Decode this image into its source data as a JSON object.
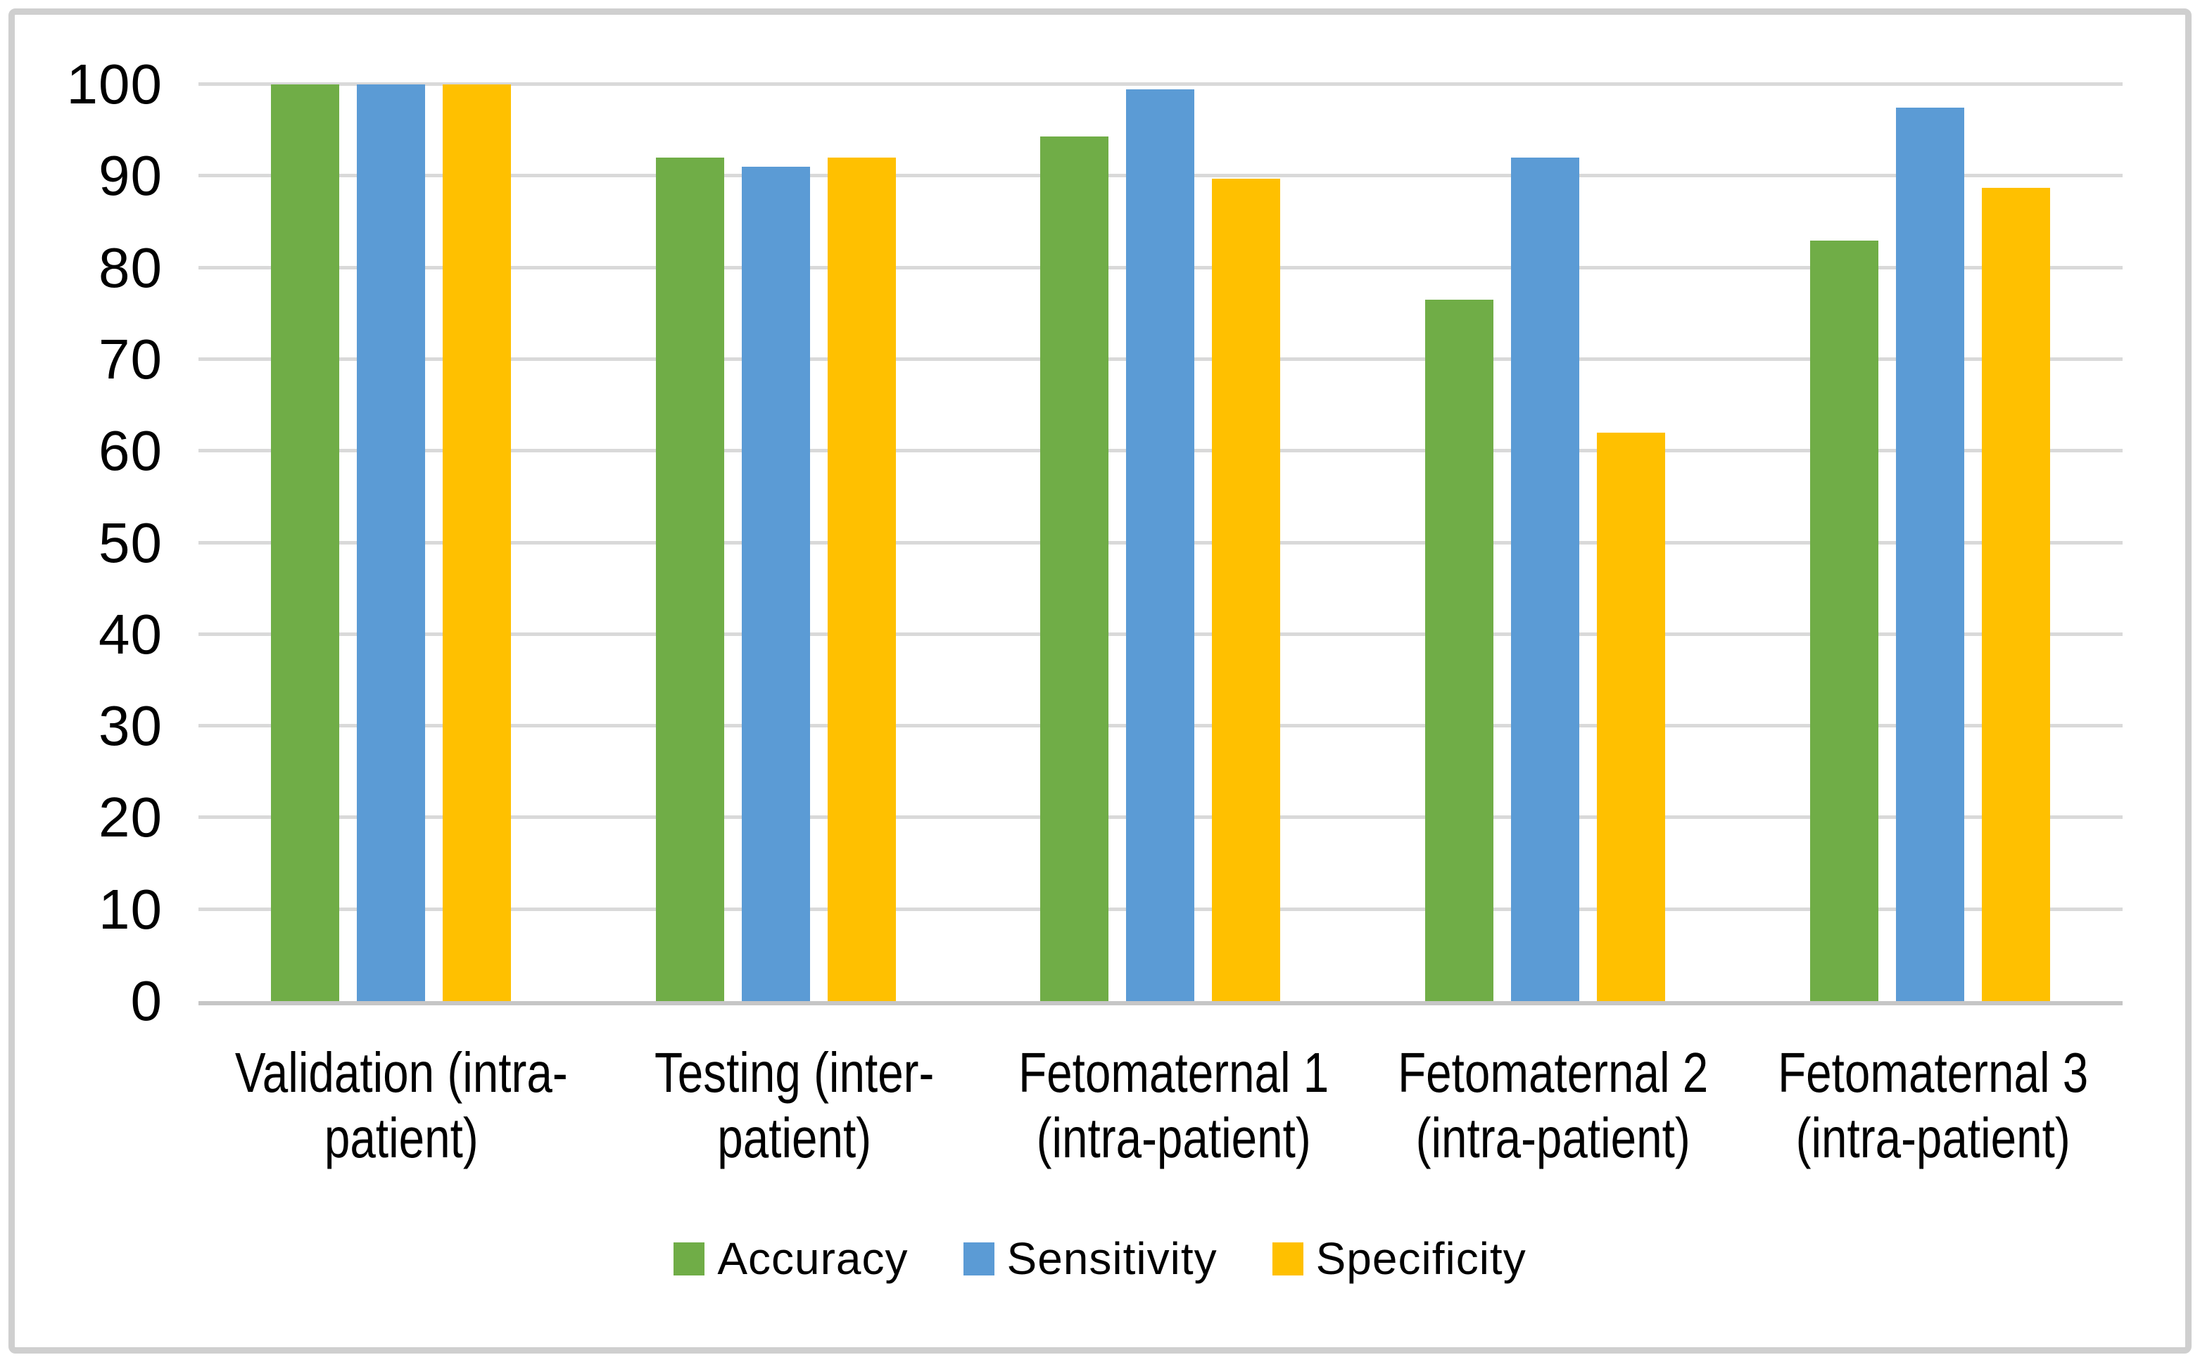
{
  "chart_data": {
    "type": "bar",
    "title": "",
    "xlabel": "",
    "ylabel": "",
    "categories": [
      [
        "Validation (intra-",
        "patient)"
      ],
      [
        "Testing (inter-",
        "patient)"
      ],
      [
        "Fetomaternal 1",
        "(intra-patient)"
      ],
      [
        "Fetomaternal 2",
        "(intra-patient)"
      ],
      [
        "Fetomaternal 3",
        "(intra-patient)"
      ]
    ],
    "series": [
      {
        "name": "Accuracy",
        "color": "#70AD47",
        "values": [
          100,
          92,
          94.3,
          76.5,
          83
        ]
      },
      {
        "name": "Sensitivity",
        "color": "#5B9BD5",
        "values": [
          100,
          91,
          99.5,
          92,
          97.5
        ]
      },
      {
        "name": "Specificity",
        "color": "#FFC000",
        "values": [
          100,
          92,
          89.7,
          62,
          88.7
        ]
      }
    ],
    "ylim": [
      0,
      100
    ],
    "yticks": [
      0,
      10,
      20,
      30,
      40,
      50,
      60,
      70,
      80,
      90,
      100
    ],
    "grid": true,
    "legend_position": "bottom"
  },
  "colors": {
    "gridline": "#D9D9D9",
    "axis_line": "#C6C6C6",
    "figure_border": "#CFCFCF",
    "text": "#000000",
    "background": "#FFFFFF"
  }
}
